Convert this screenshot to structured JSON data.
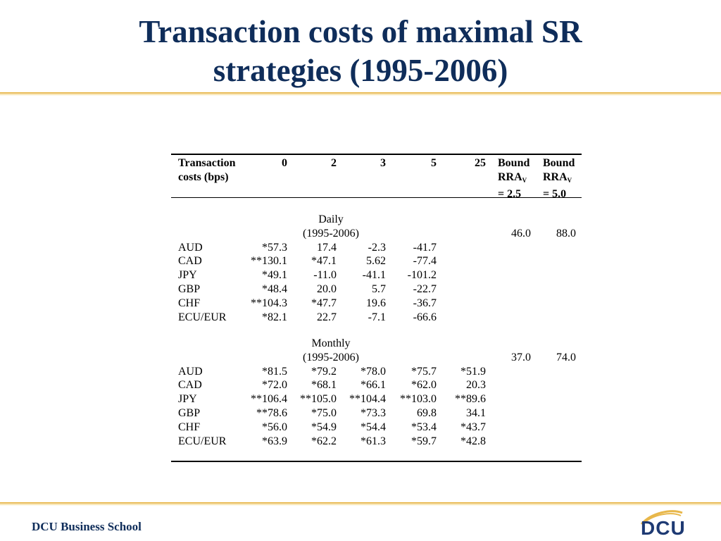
{
  "title_line1": "Transaction costs of maximal SR",
  "title_line2": "strategies (1995-2006)",
  "footer": "DCU Business School",
  "logo_text": "DCU",
  "table": {
    "header": {
      "label_line1": "Transaction",
      "label_line2": "costs (bps)",
      "cols": [
        "0",
        "2",
        "3",
        "5",
        "25"
      ],
      "bound1": {
        "line1": "Bound",
        "line2": "RRA",
        "sub": "V",
        "line3": "= 2.5"
      },
      "bound2": {
        "line1": "Bound",
        "line2": "RRA",
        "sub": "V",
        "line3": "= 5.0"
      }
    },
    "sections": [
      {
        "name": "Daily",
        "period": "(1995-2006)",
        "bound1": "46.0",
        "bound2": "88.0",
        "rows": [
          {
            "label": "AUD",
            "values": [
              "*57.3",
              "17.4",
              "-2.3",
              "-41.7",
              ""
            ]
          },
          {
            "label": "CAD",
            "values": [
              "**130.1",
              "*47.1",
              "5.62",
              "-77.4",
              ""
            ]
          },
          {
            "label": "JPY",
            "values": [
              "*49.1",
              "-11.0",
              "-41.1",
              "-101.2",
              ""
            ]
          },
          {
            "label": "GBP",
            "values": [
              "*48.4",
              "20.0",
              "5.7",
              "-22.7",
              ""
            ]
          },
          {
            "label": "CHF",
            "values": [
              "**104.3",
              "*47.7",
              "19.6",
              "-36.7",
              ""
            ]
          },
          {
            "label": "ECU/EUR",
            "values": [
              "*82.1",
              "22.7",
              "-7.1",
              "-66.6",
              ""
            ]
          }
        ]
      },
      {
        "name": "Monthly",
        "period": "(1995-2006)",
        "bound1": "37.0",
        "bound2": "74.0",
        "rows": [
          {
            "label": "AUD",
            "values": [
              "*81.5",
              "*79.2",
              "*78.0",
              "*75.7",
              "*51.9"
            ]
          },
          {
            "label": "CAD",
            "values": [
              "*72.0",
              "*68.1",
              "*66.1",
              "*62.0",
              "20.3"
            ]
          },
          {
            "label": "JPY",
            "values": [
              "**106.4",
              "**105.0",
              "**104.4",
              "**103.0",
              "**89.6"
            ]
          },
          {
            "label": "GBP",
            "values": [
              "**78.6",
              "*75.0",
              "*73.3",
              "69.8",
              "34.1"
            ]
          },
          {
            "label": "CHF",
            "values": [
              "*56.0",
              "*54.9",
              "*54.4",
              "*53.4",
              "*43.7"
            ]
          },
          {
            "label": "ECU/EUR",
            "values": [
              "*63.9",
              "*62.2",
              "*61.3",
              "*59.7",
              "*42.8"
            ]
          }
        ]
      }
    ]
  }
}
